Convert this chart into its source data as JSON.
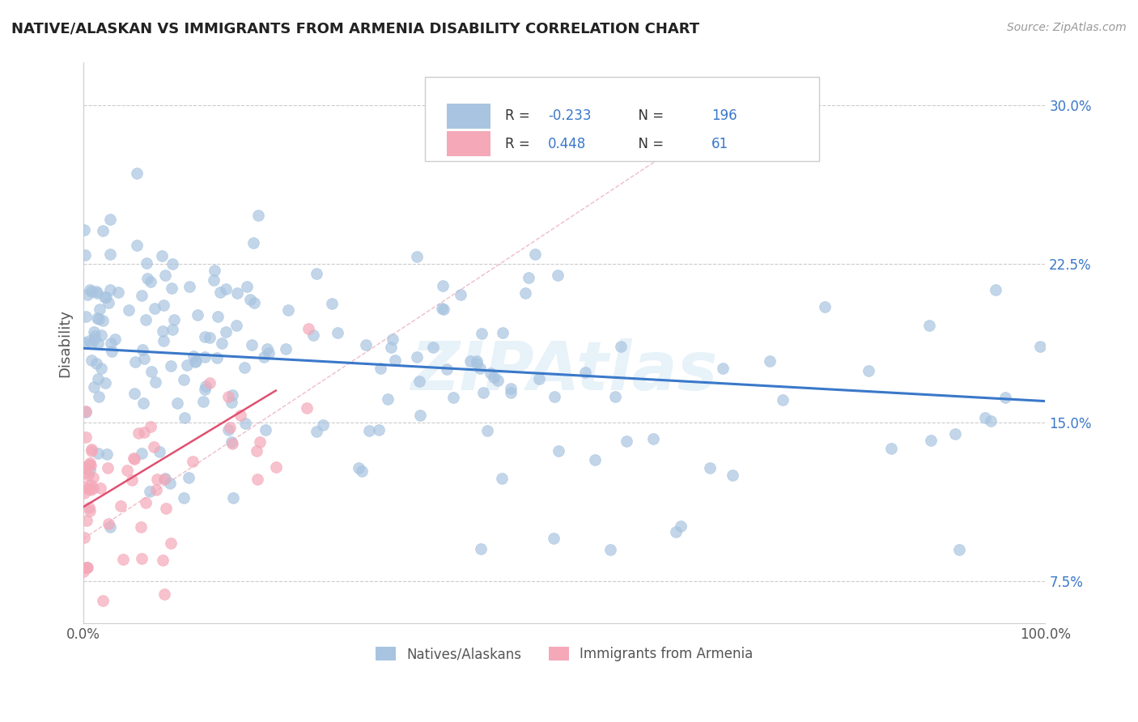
{
  "title": "NATIVE/ALASKAN VS IMMIGRANTS FROM ARMENIA DISABILITY CORRELATION CHART",
  "source_text": "Source: ZipAtlas.com",
  "ylabel": "Disability",
  "xlim": [
    0,
    100
  ],
  "ylim": [
    5.5,
    32
  ],
  "yticks": [
    7.5,
    15.0,
    22.5,
    30.0
  ],
  "xtick_labels": [
    "0.0%",
    "100.0%"
  ],
  "ytick_labels": [
    "7.5%",
    "15.0%",
    "22.5%",
    "30.0%"
  ],
  "legend_label1": "Natives/Alaskans",
  "legend_label2": "Immigrants from Armenia",
  "r1": -0.233,
  "n1": 196,
  "r2": 0.448,
  "n2": 61,
  "color1": "#a8c4e0",
  "color2": "#f4a8b8",
  "line_color1": "#3a78c9",
  "line_color2": "#e05070",
  "watermark": "ZIPAtlas",
  "background_color": "#ffffff",
  "grid_color": "#cccccc",
  "blue_line_start_y": 18.5,
  "blue_line_end_y": 16.0,
  "pink_line_start_x": 0,
  "pink_line_start_y": 11.0,
  "pink_line_end_x": 20,
  "pink_line_end_y": 16.5,
  "dashed_line_start_x": 0,
  "dashed_line_start_y": 9.5,
  "dashed_line_end_x": 70,
  "dashed_line_end_y": 30.5
}
